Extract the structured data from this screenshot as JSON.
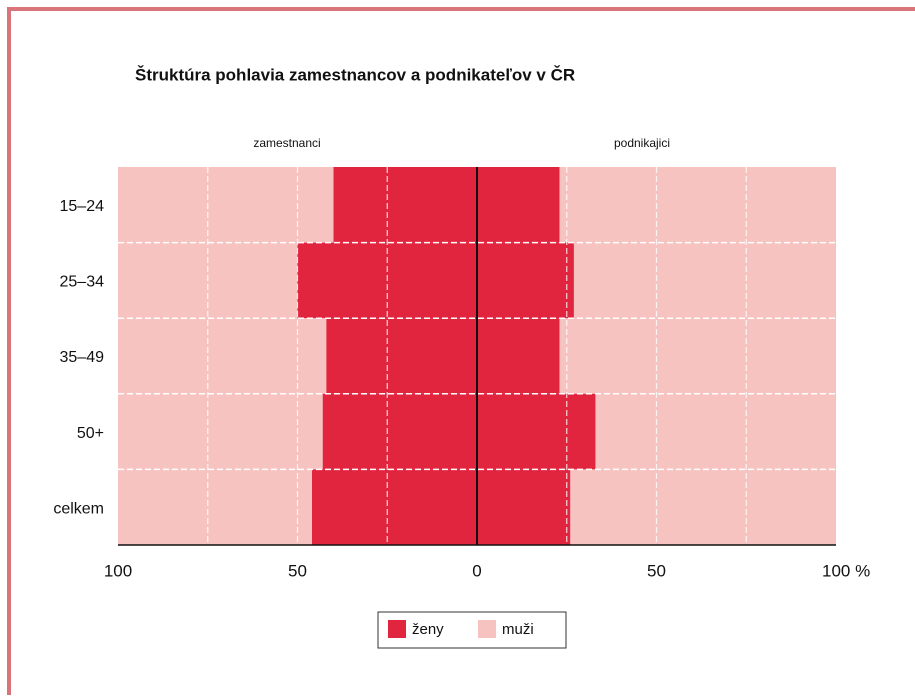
{
  "chart_data": {
    "type": "butterfly",
    "title": "Štruktúra pohlavia zamestnancov a podnikateľov v ČR",
    "left_label": "zamestnanci",
    "right_label": "podnikajici",
    "categories": [
      "15–24",
      "25–34",
      "35–49",
      "50+",
      "celkem"
    ],
    "series": [
      {
        "name": "ženy",
        "color": "#e2253f",
        "left_values": [
          40,
          50,
          42,
          43,
          46
        ],
        "right_values": [
          23,
          27,
          23,
          33,
          26
        ]
      },
      {
        "name": "muži",
        "color": "#f6c3c1",
        "left_values": [
          60,
          50,
          58,
          57,
          54
        ],
        "right_values": [
          77,
          73,
          77,
          67,
          74
        ]
      }
    ],
    "xlim": [
      -100,
      100
    ],
    "xticks": [
      {
        "value": -100,
        "label": "100"
      },
      {
        "value": -50,
        "label": "50"
      },
      0,
      50,
      {
        "value": 100,
        "label": "100 %"
      }
    ],
    "xminor": [
      -75,
      -25,
      25,
      75
    ],
    "grid": true
  }
}
